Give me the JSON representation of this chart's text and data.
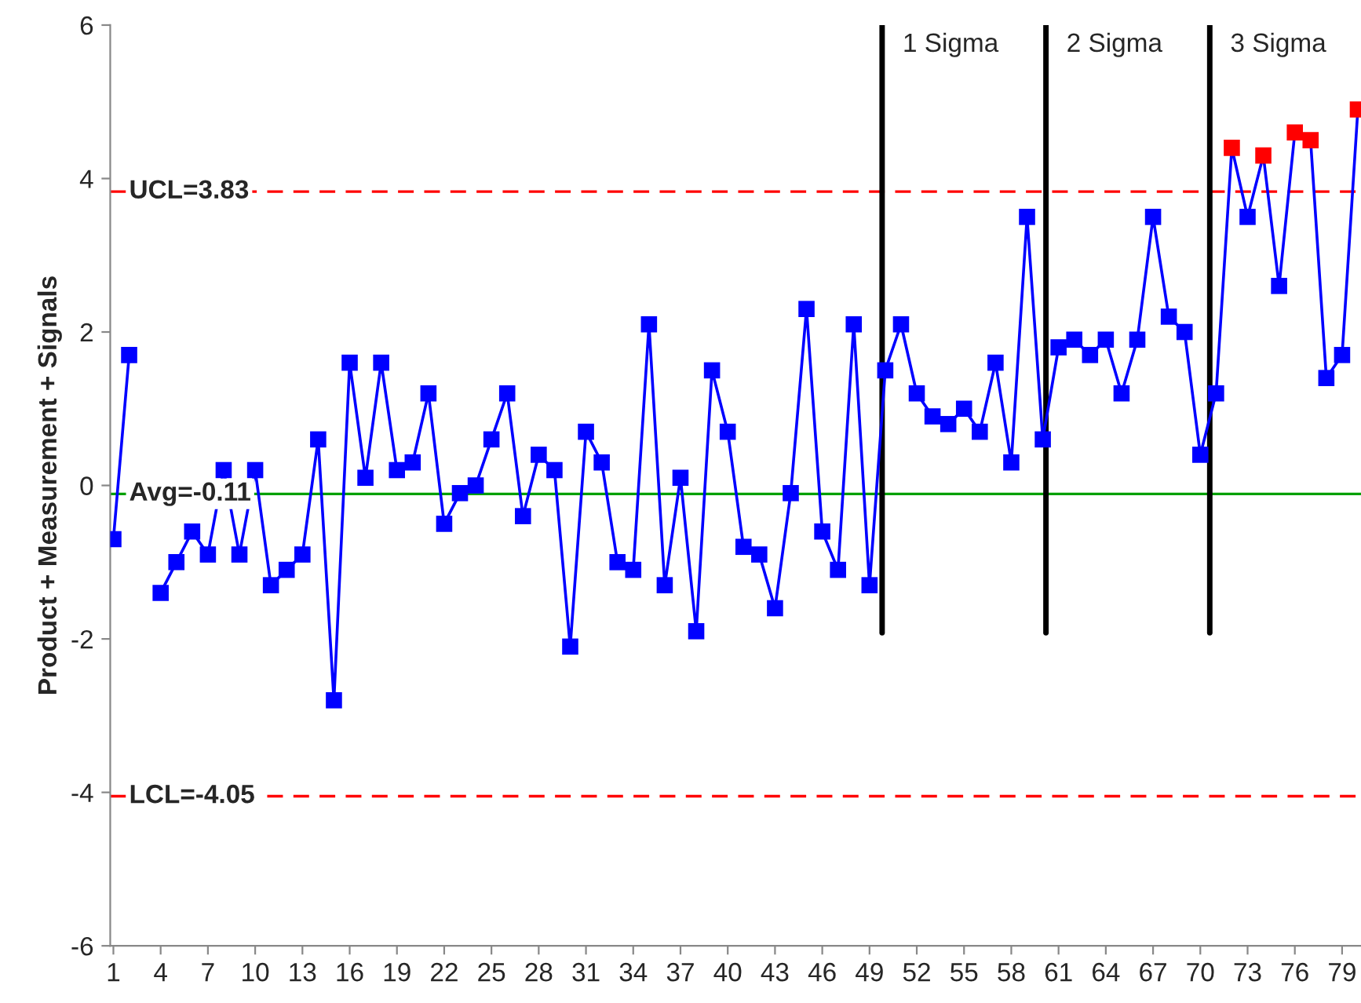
{
  "chart_data": {
    "type": "line",
    "ylabel": "Product + Measurement + Signals",
    "x": [
      1,
      2,
      3,
      4,
      5,
      6,
      7,
      8,
      9,
      10,
      11,
      12,
      13,
      14,
      15,
      16,
      17,
      18,
      19,
      20,
      21,
      22,
      23,
      24,
      25,
      26,
      27,
      28,
      29,
      30,
      31,
      32,
      33,
      34,
      35,
      36,
      37,
      38,
      39,
      40,
      41,
      42,
      43,
      44,
      45,
      46,
      47,
      48,
      49,
      50,
      51,
      52,
      53,
      54,
      55,
      56,
      57,
      58,
      59,
      60,
      61,
      62,
      63,
      64,
      65,
      66,
      67,
      68,
      69,
      70,
      71,
      72,
      73,
      74,
      75,
      76,
      77,
      78,
      79,
      80
    ],
    "series": [
      {
        "color": "#0000ff",
        "values": [
          -0.7,
          1.7,
          null,
          -1.4,
          -1.0,
          -0.6,
          -0.9,
          0.2,
          -0.9,
          0.2,
          -1.3,
          -1.1,
          -0.9,
          0.6,
          -2.8,
          1.6,
          0.1,
          1.6,
          0.2,
          0.3,
          1.2,
          -0.5,
          -0.1,
          0.0,
          0.6,
          1.2,
          -0.4,
          0.4,
          0.2,
          -2.1,
          0.7,
          0.3,
          -1.0,
          -1.1,
          2.1,
          -1.3,
          0.1,
          -1.9,
          1.5,
          0.7,
          -0.8,
          -0.9,
          -1.6,
          -0.1,
          2.3,
          -0.6,
          -1.1,
          2.1,
          -1.3,
          1.5,
          2.1,
          1.2,
          0.9,
          0.8,
          1.0,
          0.7,
          1.6,
          0.3,
          3.5,
          0.6,
          1.8,
          1.9,
          1.7,
          1.9,
          1.2,
          1.9,
          3.5,
          2.2,
          2.0,
          0.4,
          1.2,
          4.4,
          3.5,
          4.3,
          2.6,
          4.6,
          4.5,
          1.4,
          1.7,
          4.9
        ],
        "colors": [
          "#0000ff",
          "#0000ff",
          "#0000ff",
          "#0000ff",
          "#0000ff",
          "#0000ff",
          "#0000ff",
          "#0000ff",
          "#0000ff",
          "#0000ff",
          "#0000ff",
          "#0000ff",
          "#0000ff",
          "#0000ff",
          "#0000ff",
          "#0000ff",
          "#0000ff",
          "#0000ff",
          "#0000ff",
          "#0000ff",
          "#0000ff",
          "#0000ff",
          "#0000ff",
          "#0000ff",
          "#0000ff",
          "#0000ff",
          "#0000ff",
          "#0000ff",
          "#0000ff",
          "#0000ff",
          "#0000ff",
          "#0000ff",
          "#0000ff",
          "#0000ff",
          "#0000ff",
          "#0000ff",
          "#0000ff",
          "#0000ff",
          "#0000ff",
          "#0000ff",
          "#0000ff",
          "#0000ff",
          "#0000ff",
          "#0000ff",
          "#0000ff",
          "#0000ff",
          "#0000ff",
          "#0000ff",
          "#0000ff",
          "#0000ff",
          "#0000ff",
          "#0000ff",
          "#0000ff",
          "#0000ff",
          "#0000ff",
          "#0000ff",
          "#0000ff",
          "#0000ff",
          "#0000ff",
          "#0000ff",
          "#0000ff",
          "#0000ff",
          "#0000ff",
          "#0000ff",
          "#0000ff",
          "#0000ff",
          "#0000ff",
          "#0000ff",
          "#0000ff",
          "#0000ff",
          "#0000ff",
          "#ff0000",
          "#0000ff",
          "#ff0000",
          "#0000ff",
          "#ff0000",
          "#ff0000",
          "#0000ff",
          "#0000ff",
          "#ff0000"
        ]
      }
    ],
    "xlim": [
      0.8,
      80.2
    ],
    "xticks": [
      1,
      4,
      7,
      10,
      13,
      16,
      19,
      22,
      25,
      28,
      31,
      34,
      37,
      40,
      43,
      46,
      49,
      52,
      55,
      58,
      61,
      64,
      67,
      70,
      73,
      76,
      79
    ],
    "ylim": [
      -6,
      6
    ],
    "yticks": [
      -6,
      -4,
      -2,
      0,
      2,
      4,
      6
    ],
    "ref_lines": [
      {
        "axis": "y",
        "value": 3.83,
        "label": "UCL=3.83",
        "color": "#ff0000",
        "line_style": "dashed"
      },
      {
        "axis": "y",
        "value": -0.11,
        "label": "Avg=-0.11",
        "color": "#00a000",
        "line_style": "solid"
      },
      {
        "axis": "y",
        "value": -4.05,
        "label": "LCL=-4.05",
        "color": "#ff0000",
        "line_style": "dashed"
      },
      {
        "axis": "x",
        "value": 49.8,
        "label": "1 Sigma",
        "color": "#000000",
        "line_style": "solid"
      },
      {
        "axis": "x",
        "value": 60.2,
        "label": "2 Sigma",
        "color": "#000000",
        "line_style": "solid"
      },
      {
        "axis": "x",
        "value": 70.6,
        "label": "3 Sigma",
        "color": "#000000",
        "line_style": "solid"
      }
    ],
    "marker": "square",
    "line_style": "solid",
    "grid": false,
    "legend": false
  }
}
